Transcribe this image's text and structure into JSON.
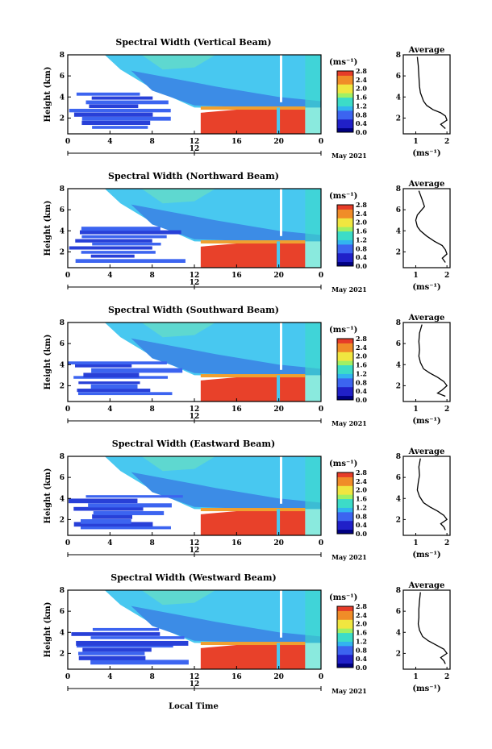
{
  "figure": {
    "x_axis_label": "Local Time",
    "date_label": "May 2021",
    "date_marker": "12",
    "x_ticks": [
      "0",
      "4",
      "8",
      "12",
      "16",
      "20",
      "0"
    ],
    "y_axis_label": "Height (km)",
    "y_ticks": [
      "2",
      "4",
      "6",
      "8"
    ],
    "unit_label": "(ms⁻¹)",
    "colorbar_ticks": [
      "0.0",
      "0.4",
      "0.8",
      "1.2",
      "1.6",
      "2.0",
      "2.4",
      "2.8"
    ],
    "avg_title": "Average",
    "avg_x_ticks": [
      "1",
      "2"
    ],
    "avg_y_ticks": [
      "2",
      "4",
      "6",
      "8"
    ],
    "avg_unit_label": "(ms⁻¹)"
  },
  "chart_data": [
    {
      "type": "heatmap",
      "title": "Spectral Width (Vertical Beam)",
      "xlabel": "",
      "ylabel": "Height (km)",
      "xlim": [
        0,
        24
      ],
      "ylim": [
        0.5,
        8
      ],
      "zlim": [
        0,
        2.8
      ]
    },
    {
      "type": "heatmap",
      "title": "Spectral Width (Northward Beam)",
      "xlabel": "",
      "ylabel": "Height (km)",
      "xlim": [
        0,
        24
      ],
      "ylim": [
        0.5,
        8
      ],
      "zlim": [
        0,
        2.8
      ]
    },
    {
      "type": "heatmap",
      "title": "Spectral Width (Southward Beam)",
      "xlabel": "",
      "ylabel": "Height (km)",
      "xlim": [
        0,
        24
      ],
      "ylim": [
        0.5,
        8
      ],
      "zlim": [
        0,
        2.8
      ]
    },
    {
      "type": "heatmap",
      "title": "Spectral Width (Eastward Beam)",
      "xlabel": "",
      "ylabel": "Height (km)",
      "xlim": [
        0,
        24
      ],
      "ylim": [
        0.5,
        8
      ],
      "zlim": [
        0,
        2.8
      ]
    },
    {
      "type": "heatmap",
      "title": "Spectral Width (Westward Beam)",
      "xlabel": "Local Time",
      "ylabel": "Height (km)",
      "xlim": [
        0,
        24
      ],
      "ylim": [
        0.5,
        8
      ],
      "zlim": [
        0,
        2.8
      ]
    },
    {
      "type": "line",
      "title": "Average",
      "xlabel": "(ms⁻¹)",
      "xlim": [
        0.6,
        2.1
      ],
      "ylim": [
        0.5,
        8
      ],
      "x": [
        1.05,
        1.08,
        1.1,
        1.12,
        1.15,
        1.2,
        1.25,
        1.35,
        1.55,
        1.8,
        1.95,
        2.0,
        1.8,
        1.95
      ],
      "y": [
        7.8,
        7.0,
        6.0,
        5.0,
        4.4,
        4.0,
        3.6,
        3.2,
        2.8,
        2.5,
        2.2,
        1.8,
        1.4,
        1.0
      ]
    },
    {
      "type": "line",
      "title": "Average",
      "xlabel": "(ms⁻¹)",
      "xlim": [
        0.6,
        2.1
      ],
      "ylim": [
        0.5,
        8
      ],
      "x": [
        1.1,
        1.2,
        1.28,
        1.05,
        1.0,
        1.05,
        1.15,
        1.35,
        1.6,
        1.85,
        1.95,
        2.0,
        1.85,
        1.95
      ],
      "y": [
        7.8,
        7.0,
        6.3,
        5.5,
        5.0,
        4.4,
        4.0,
        3.5,
        3.0,
        2.6,
        2.2,
        1.8,
        1.4,
        1.0
      ]
    },
    {
      "type": "line",
      "title": "Average",
      "xlabel": "(ms⁻¹)",
      "xlim": [
        0.6,
        2.1
      ],
      "ylim": [
        0.5,
        8
      ],
      "x": [
        1.2,
        1.12,
        1.1,
        1.12,
        1.1,
        1.15,
        1.25,
        1.45,
        1.7,
        1.9,
        2.0,
        1.85,
        1.7,
        1.95
      ],
      "y": [
        7.8,
        7.0,
        6.2,
        5.4,
        4.8,
        4.2,
        3.6,
        3.2,
        2.8,
        2.4,
        2.0,
        1.6,
        1.3,
        1.0
      ]
    },
    {
      "type": "line",
      "title": "Average",
      "xlabel": "(ms⁻¹)",
      "xlim": [
        0.6,
        2.1
      ],
      "ylim": [
        0.5,
        8
      ],
      "x": [
        1.15,
        1.1,
        1.12,
        1.08,
        1.05,
        1.12,
        1.25,
        1.45,
        1.7,
        1.9,
        2.0,
        1.8,
        1.9,
        1.95
      ],
      "y": [
        7.8,
        7.0,
        6.2,
        5.5,
        4.8,
        4.2,
        3.6,
        3.2,
        2.8,
        2.4,
        2.0,
        1.6,
        1.3,
        1.0
      ]
    },
    {
      "type": "line",
      "title": "Average",
      "xlabel": "(ms⁻¹)",
      "xlim": [
        0.6,
        2.1
      ],
      "ylim": [
        0.5,
        8
      ],
      "x": [
        1.15,
        1.12,
        1.1,
        1.1,
        1.08,
        1.12,
        1.22,
        1.4,
        1.65,
        1.9,
        2.0,
        1.8,
        1.9,
        1.95
      ],
      "y": [
        7.8,
        7.0,
        6.2,
        5.4,
        4.8,
        4.2,
        3.6,
        3.2,
        2.8,
        2.4,
        2.0,
        1.6,
        1.3,
        1.0
      ]
    }
  ]
}
